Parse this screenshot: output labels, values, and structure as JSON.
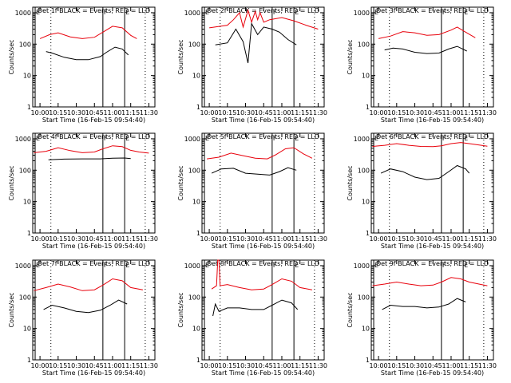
{
  "chart_data": [
    {
      "type": "line",
      "title": "Det 1f BLACK = Events, RED = LLD",
      "xlabel": "Start Time (16-Feb-15 09:54:40)",
      "ylabel": "Counts/sec",
      "x_ticks": [
        "10:00",
        "10:15",
        "10:30",
        "10:45",
        "11:00",
        "11:15",
        "11:30"
      ],
      "y_ticks": [
        "1",
        "10",
        "100",
        "1000"
      ],
      "xlim": [
        "09:54",
        "11:35"
      ],
      "ylim": [
        1,
        1500
      ],
      "yscale": "log",
      "markers": [
        {
          "label": "E",
          "time": "09:56",
          "style": "solid"
        },
        {
          "label": "",
          "time": "10:09",
          "style": "dotted"
        },
        {
          "label": "F",
          "time": "10:52",
          "style": "solid"
        },
        {
          "label": "E",
          "time": "11:10",
          "style": "solid"
        },
        {
          "label": "",
          "time": "11:27",
          "style": "dotted"
        }
      ],
      "series": [
        {
          "name": "LLD",
          "color": "#e8000b",
          "x": [
            "10:00",
            "10:08",
            "10:15",
            "10:25",
            "10:35",
            "10:45",
            "10:52",
            "11:00",
            "11:08",
            "11:15",
            "11:20"
          ],
          "values": [
            150,
            200,
            230,
            170,
            150,
            165,
            240,
            370,
            330,
            190,
            150
          ]
        },
        {
          "name": "Events",
          "color": "#000000",
          "x": [
            "10:05",
            "10:10",
            "10:20",
            "10:30",
            "10:40",
            "10:50",
            "10:55",
            "11:02",
            "11:08",
            "11:13"
          ],
          "values": [
            58,
            52,
            38,
            32,
            32,
            40,
            55,
            80,
            70,
            45
          ]
        }
      ]
    },
    {
      "type": "line",
      "title": "Det 2f BLACK = Events, RED = LLD",
      "xlabel": "Start Time (16-Feb-15 09:54:40)",
      "ylabel": "Counts/sec",
      "x_ticks": [
        "10:00",
        "10:15",
        "10:30",
        "10:45",
        "11:00",
        "11:15",
        "11:30"
      ],
      "y_ticks": [
        "1",
        "10",
        "100",
        "1000"
      ],
      "xlim": [
        "09:54",
        "11:35"
      ],
      "ylim": [
        1,
        1500
      ],
      "yscale": "log",
      "markers": [
        {
          "label": "E",
          "time": "09:56",
          "style": "solid"
        },
        {
          "label": "",
          "time": "10:09",
          "style": "dotted"
        },
        {
          "label": "F",
          "time": "10:52",
          "style": "solid"
        },
        {
          "label": "E",
          "time": "11:10",
          "style": "solid"
        },
        {
          "label": "",
          "time": "11:27",
          "style": "dotted"
        }
      ],
      "series": [
        {
          "name": "LLD",
          "color": "#e8000b",
          "x": [
            "10:00",
            "10:15",
            "10:20",
            "10:25",
            "10:28",
            "10:32",
            "10:35",
            "10:38",
            "10:40",
            "10:42",
            "10:45",
            "10:50",
            "11:00",
            "11:10",
            "11:20",
            "11:30"
          ],
          "values": [
            330,
            400,
            600,
            1000,
            350,
            1200,
            500,
            1100,
            600,
            1000,
            500,
            600,
            700,
            550,
            400,
            300
          ]
        },
        {
          "name": "Events",
          "color": "#000000",
          "x": [
            "10:05",
            "10:15",
            "10:22",
            "10:28",
            "10:32",
            "10:35",
            "10:40",
            "10:45",
            "10:52",
            "10:58",
            "11:05",
            "11:12"
          ],
          "values": [
            95,
            110,
            300,
            120,
            25,
            450,
            200,
            350,
            300,
            240,
            140,
            95
          ]
        }
      ]
    },
    {
      "type": "line",
      "title": "Det 3f BLACK = Events, RED = LLD",
      "xlabel": "Start Time (16-Feb-15 09:54:40)",
      "ylabel": "Counts/sec",
      "x_ticks": [
        "10:00",
        "10:15",
        "10:30",
        "10:45",
        "11:00",
        "11:15",
        "11:30"
      ],
      "y_ticks": [
        "1",
        "10",
        "100",
        "1000"
      ],
      "xlim": [
        "09:54",
        "11:35"
      ],
      "ylim": [
        1,
        1500
      ],
      "yscale": "log",
      "markers": [
        {
          "label": "E",
          "time": "09:56",
          "style": "solid"
        },
        {
          "label": "",
          "time": "10:09",
          "style": "dotted"
        },
        {
          "label": "F",
          "time": "10:52",
          "style": "solid"
        },
        {
          "label": "E",
          "time": "11:10",
          "style": "solid"
        },
        {
          "label": "",
          "time": "11:27",
          "style": "dotted"
        }
      ],
      "series": [
        {
          "name": "LLD",
          "color": "#e8000b",
          "x": [
            "10:00",
            "10:10",
            "10:20",
            "10:30",
            "10:40",
            "10:50",
            "11:00",
            "11:05",
            "11:12",
            "11:20"
          ],
          "values": [
            150,
            180,
            250,
            230,
            190,
            200,
            280,
            350,
            240,
            160
          ]
        },
        {
          "name": "Events",
          "color": "#000000",
          "x": [
            "10:05",
            "10:12",
            "10:20",
            "10:30",
            "10:40",
            "10:50",
            "10:58",
            "11:05",
            "11:13"
          ],
          "values": [
            65,
            75,
            70,
            55,
            50,
            52,
            70,
            85,
            60
          ]
        }
      ]
    },
    {
      "type": "line",
      "title": "Det 4f BLACK = Events, RED = LLD",
      "xlabel": "Start Time (16-Feb-15 09:54:40)",
      "ylabel": "Counts/sec",
      "x_ticks": [
        "10:00",
        "10:15",
        "10:30",
        "10:45",
        "11:00",
        "11:15",
        "11:30"
      ],
      "y_ticks": [
        "1",
        "10",
        "100",
        "1000"
      ],
      "xlim": [
        "09:54",
        "11:35"
      ],
      "ylim": [
        1,
        1500
      ],
      "yscale": "log",
      "markers": [
        {
          "label": "E",
          "time": "09:56",
          "style": "solid"
        },
        {
          "label": "",
          "time": "10:09",
          "style": "dotted"
        },
        {
          "label": "F",
          "time": "10:52",
          "style": "solid"
        },
        {
          "label": "E",
          "time": "11:10",
          "style": "solid"
        },
        {
          "label": "",
          "time": "11:27",
          "style": "dotted"
        }
      ],
      "series": [
        {
          "name": "LLD",
          "color": "#e8000b",
          "x": [
            "09:55",
            "10:05",
            "10:15",
            "10:25",
            "10:35",
            "10:45",
            "10:52",
            "11:00",
            "11:08",
            "11:15",
            "11:22",
            "11:30"
          ],
          "values": [
            360,
            400,
            520,
            420,
            360,
            380,
            480,
            600,
            560,
            430,
            380,
            350
          ]
        },
        {
          "name": "Events",
          "color": "#000000",
          "x": [
            "10:07",
            "10:20",
            "10:35",
            "10:50",
            "11:00",
            "11:10",
            "11:15"
          ],
          "values": [
            215,
            225,
            230,
            230,
            240,
            245,
            235
          ]
        }
      ]
    },
    {
      "type": "line",
      "title": "Det 5f BLACK = Events, RED = LLD",
      "xlabel": "Start Time (16-Feb-15 09:54:40)",
      "ylabel": "Counts/sec",
      "x_ticks": [
        "10:00",
        "10:15",
        "10:30",
        "10:45",
        "11:00",
        "11:15",
        "11:30"
      ],
      "y_ticks": [
        "1",
        "10",
        "100",
        "1000"
      ],
      "xlim": [
        "09:54",
        "11:35"
      ],
      "ylim": [
        1,
        1500
      ],
      "yscale": "log",
      "markers": [
        {
          "label": "E",
          "time": "09:56",
          "style": "solid"
        },
        {
          "label": "",
          "time": "10:09",
          "style": "dotted"
        },
        {
          "label": "F",
          "time": "10:52",
          "style": "solid"
        },
        {
          "label": "E",
          "time": "11:10",
          "style": "solid"
        },
        {
          "label": "",
          "time": "11:27",
          "style": "dotted"
        }
      ],
      "series": [
        {
          "name": "LLD",
          "color": "#e8000b",
          "x": [
            "09:58",
            "10:08",
            "10:18",
            "10:28",
            "10:38",
            "10:48",
            "10:55",
            "11:03",
            "11:10",
            "11:18",
            "11:25"
          ],
          "values": [
            230,
            260,
            350,
            290,
            240,
            230,
            310,
            480,
            520,
            330,
            240
          ]
        },
        {
          "name": "Events",
          "color": "#000000",
          "x": [
            "10:02",
            "10:10",
            "10:20",
            "10:30",
            "10:40",
            "10:50",
            "10:58",
            "11:05",
            "11:12"
          ],
          "values": [
            80,
            110,
            115,
            80,
            75,
            70,
            90,
            120,
            100
          ]
        }
      ]
    },
    {
      "type": "line",
      "title": "Det 6f BLACK = Events, RED = LLD",
      "xlabel": "Start Time (16-Feb-15 09:54:40)",
      "ylabel": "Counts/sec",
      "x_ticks": [
        "10:00",
        "10:15",
        "10:30",
        "10:45",
        "11:00",
        "11:15",
        "11:30"
      ],
      "y_ticks": [
        "1",
        "10",
        "100",
        "1000"
      ],
      "xlim": [
        "09:54",
        "11:35"
      ],
      "ylim": [
        1,
        1500
      ],
      "yscale": "log",
      "markers": [
        {
          "label": "E",
          "time": "09:56",
          "style": "solid"
        },
        {
          "label": "",
          "time": "10:09",
          "style": "dotted"
        },
        {
          "label": "F",
          "time": "10:52",
          "style": "solid"
        },
        {
          "label": "E",
          "time": "11:10",
          "style": "solid"
        },
        {
          "label": "",
          "time": "11:27",
          "style": "dotted"
        }
      ],
      "series": [
        {
          "name": "LLD",
          "color": "#e8000b",
          "x": [
            "09:55",
            "10:05",
            "10:15",
            "10:25",
            "10:35",
            "10:45",
            "10:52",
            "11:00",
            "11:08",
            "11:15",
            "11:25",
            "11:30"
          ],
          "values": [
            570,
            620,
            700,
            620,
            570,
            560,
            600,
            700,
            760,
            700,
            620,
            580
          ]
        },
        {
          "name": "Events",
          "color": "#000000",
          "x": [
            "10:02",
            "10:10",
            "10:20",
            "10:30",
            "10:40",
            "10:50",
            "10:58",
            "11:05",
            "11:12",
            "11:15"
          ],
          "values": [
            80,
            110,
            90,
            60,
            50,
            55,
            90,
            140,
            110,
            80
          ]
        }
      ]
    },
    {
      "type": "line",
      "title": "Det 7f BLACK = Events, RED = LLD",
      "xlabel": "Start Time (16-Feb-15 09:54:40)",
      "ylabel": "Counts/sec",
      "x_ticks": [
        "10:00",
        "10:15",
        "10:30",
        "10:45",
        "11:00",
        "11:15",
        "11:30"
      ],
      "y_ticks": [
        "1",
        "10",
        "100",
        "1000"
      ],
      "xlim": [
        "09:54",
        "11:35"
      ],
      "ylim": [
        1,
        1500
      ],
      "yscale": "log",
      "markers": [
        {
          "label": "E",
          "time": "09:56",
          "style": "solid"
        },
        {
          "label": "",
          "time": "10:09",
          "style": "dotted"
        },
        {
          "label": "F",
          "time": "10:52",
          "style": "solid"
        },
        {
          "label": "E",
          "time": "11:10",
          "style": "solid"
        },
        {
          "label": "",
          "time": "11:27",
          "style": "dotted"
        }
      ],
      "series": [
        {
          "name": "LLD",
          "color": "#e8000b",
          "x": [
            "09:55",
            "10:05",
            "10:15",
            "10:25",
            "10:35",
            "10:45",
            "10:52",
            "11:00",
            "11:08",
            "11:15",
            "11:25"
          ],
          "values": [
            160,
            200,
            260,
            210,
            160,
            170,
            240,
            380,
            330,
            200,
            170
          ]
        },
        {
          "name": "Events",
          "color": "#000000",
          "x": [
            "10:03",
            "10:10",
            "10:20",
            "10:30",
            "10:40",
            "10:50",
            "10:58",
            "11:05",
            "11:12"
          ],
          "values": [
            40,
            55,
            45,
            35,
            32,
            38,
            55,
            80,
            60
          ]
        }
      ]
    },
    {
      "type": "line",
      "title": "Det 8f BLACK = Events, RED = LLD",
      "xlabel": "Start Time (16-Feb-15 09:54:40)",
      "ylabel": "Counts/sec",
      "x_ticks": [
        "10:00",
        "10:15",
        "10:30",
        "10:45",
        "11:00",
        "11:15",
        "11:30"
      ],
      "y_ticks": [
        "1",
        "10",
        "100",
        "1000"
      ],
      "xlim": [
        "09:54",
        "11:35"
      ],
      "ylim": [
        1,
        1500
      ],
      "yscale": "log",
      "markers": [
        {
          "label": "E",
          "time": "09:56",
          "style": "solid"
        },
        {
          "label": "",
          "time": "10:09",
          "style": "dotted"
        },
        {
          "label": "F",
          "time": "10:52",
          "style": "solid"
        },
        {
          "label": "E",
          "time": "11:10",
          "style": "solid"
        },
        {
          "label": "",
          "time": "11:27",
          "style": "dotted"
        }
      ],
      "series": [
        {
          "name": "LLD",
          "color": "#e8000b",
          "x": [
            "10:02",
            "10:06",
            "10:07",
            "10:08",
            "10:09",
            "10:15",
            "10:25",
            "10:35",
            "10:45",
            "10:52",
            "11:00",
            "11:08",
            "11:15",
            "11:25"
          ],
          "values": [
            180,
            230,
            1500,
            1500,
            230,
            250,
            200,
            170,
            180,
            250,
            380,
            320,
            200,
            170
          ]
        },
        {
          "name": "Events",
          "color": "#000000",
          "x": [
            "10:03",
            "10:05",
            "10:08",
            "10:15",
            "10:25",
            "10:35",
            "10:45",
            "10:52",
            "11:00",
            "11:08",
            "11:13"
          ],
          "values": [
            25,
            60,
            35,
            45,
            45,
            40,
            40,
            55,
            80,
            65,
            40
          ]
        }
      ]
    },
    {
      "type": "line",
      "title": "Det 9f BLACK = Events, RED = LLD",
      "xlabel": "Start Time (16-Feb-15 09:54:40)",
      "ylabel": "Counts/sec",
      "x_ticks": [
        "10:00",
        "10:15",
        "10:30",
        "10:45",
        "11:00",
        "11:15",
        "11:30"
      ],
      "y_ticks": [
        "1",
        "10",
        "100",
        "1000"
      ],
      "xlim": [
        "09:54",
        "11:35"
      ],
      "ylim": [
        1,
        1500
      ],
      "yscale": "log",
      "markers": [
        {
          "label": "E",
          "time": "09:56",
          "style": "solid"
        },
        {
          "label": "",
          "time": "10:09",
          "style": "dotted"
        },
        {
          "label": "F",
          "time": "10:52",
          "style": "solid"
        },
        {
          "label": "E",
          "time": "11:10",
          "style": "solid"
        },
        {
          "label": "",
          "time": "11:27",
          "style": "dotted"
        }
      ],
      "series": [
        {
          "name": "LLD",
          "color": "#e8000b",
          "x": [
            "09:55",
            "10:05",
            "10:15",
            "10:25",
            "10:35",
            "10:45",
            "10:52",
            "11:00",
            "11:08",
            "11:15",
            "11:25",
            "11:30"
          ],
          "values": [
            230,
            260,
            300,
            260,
            230,
            240,
            300,
            420,
            380,
            300,
            250,
            230
          ]
        },
        {
          "name": "Events",
          "color": "#000000",
          "x": [
            "10:03",
            "10:10",
            "10:20",
            "10:30",
            "10:40",
            "10:50",
            "10:58",
            "11:05",
            "11:12"
          ],
          "values": [
            40,
            55,
            50,
            50,
            45,
            48,
            60,
            90,
            70
          ]
        }
      ]
    }
  ]
}
